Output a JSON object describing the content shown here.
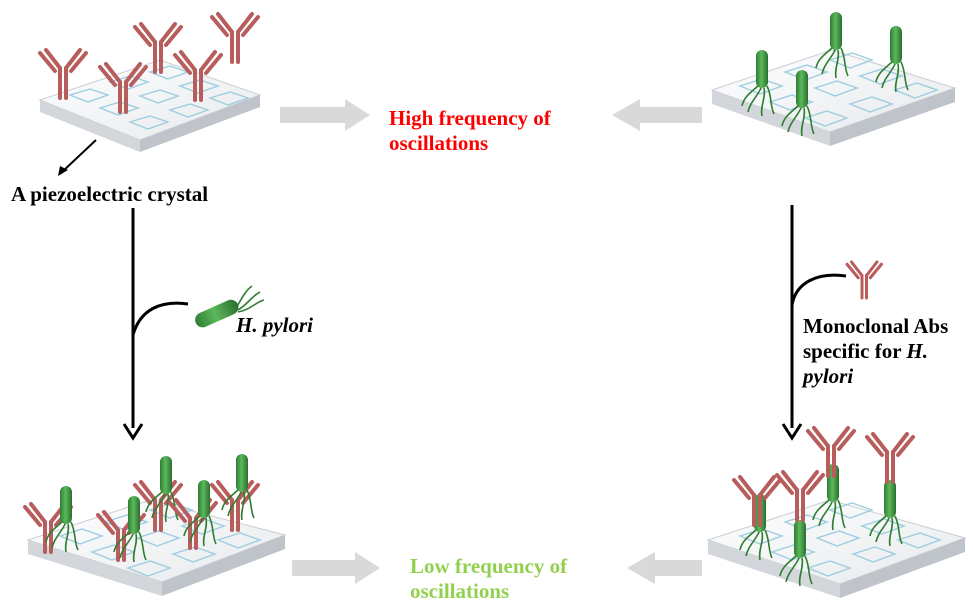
{
  "labels": {
    "crystal": "A piezoelectric crystal",
    "high_line1": "High frequency of",
    "high_line2": "oscillations",
    "low_line1": "Low frequency of",
    "low_line2": "oscillations",
    "pylori_italic": "H. pylori",
    "mab_line1": "Monoclonal Abs",
    "mab_line2_prefix": "specific for ",
    "mab_line2_italic": "H.",
    "mab_line3_italic": "pylori"
  },
  "colors": {
    "high_text": "#ff0000",
    "low_text": "#92d050",
    "antibody": "#b85c5c",
    "bacterium": "#3a9a3a",
    "flagella": "#2f7d2f",
    "plate_top": "#f2f4f6",
    "plate_side": "#c9ced4",
    "mesh": "#9dcde0",
    "flow_arrow": "#d9d9d9",
    "process_arrow": "#000000"
  }
}
